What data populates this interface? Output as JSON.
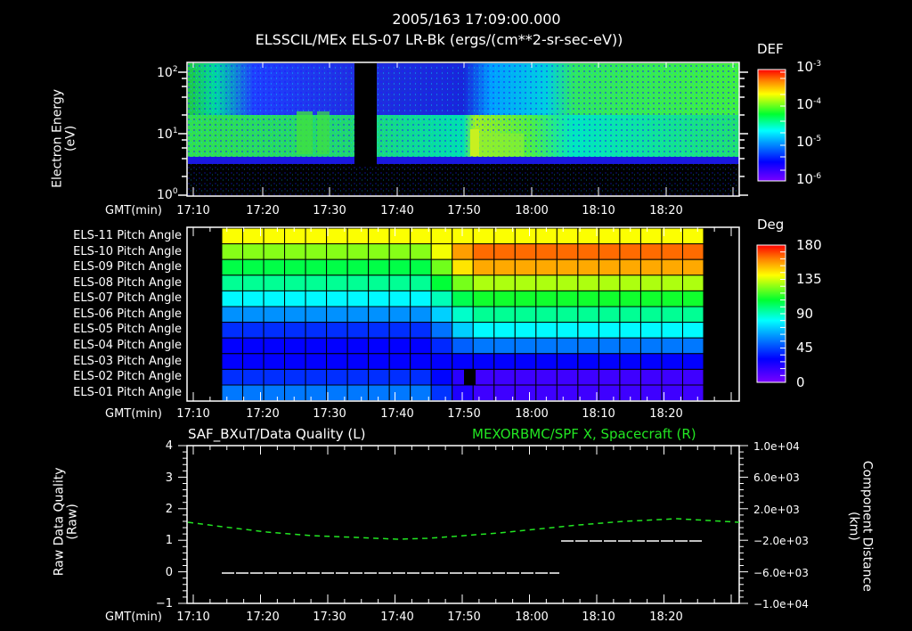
{
  "header": {
    "timestamp": "2005/163 17:09:00.000",
    "subtitle": "ELSSCIL/MEx ELS-07 LR-Bk  (ergs/(cm**2-sr-sec-eV))"
  },
  "panel1": {
    "ylabel_line1": "Electron Energy",
    "ylabel_line2": "(eV)",
    "yticks": [
      "10",
      "10",
      "10"
    ],
    "ytick_exps": [
      "2",
      "1",
      "0"
    ],
    "xlabel": "GMT(min)",
    "colorbar": {
      "title": "DEF",
      "labels": [
        "10",
        "10",
        "10",
        "10"
      ],
      "exps": [
        "-3",
        "-4",
        "-5",
        "-6"
      ]
    }
  },
  "panel2": {
    "rows": [
      "ELS-11 Pitch Angle",
      "ELS-10 Pitch Angle",
      "ELS-09 Pitch Angle",
      "ELS-08 Pitch Angle",
      "ELS-07 Pitch Angle",
      "ELS-06 Pitch Angle",
      "ELS-05 Pitch Angle",
      "ELS-04 Pitch Angle",
      "ELS-03 Pitch Angle",
      "ELS-02 Pitch Angle",
      "ELS-01 Pitch Angle"
    ],
    "xlabel": "GMT(min)",
    "colorbar": {
      "title": "Deg",
      "labels": [
        "180",
        "135",
        "90",
        "45",
        "0"
      ]
    }
  },
  "panel3": {
    "left_title": "SAF_BXuT/Data Quality (L)",
    "right_title": "MEXORBMC/SPF X, Spacecraft (R)",
    "ylabel_left_line1": "Raw Data Quality",
    "ylabel_left_line2": "(Raw)",
    "ylabel_right_line1": "Component Distance",
    "ylabel_right_line2": "(km)",
    "yticks_left": [
      "4",
      "3",
      "2",
      "1",
      "0",
      "−1"
    ],
    "yticks_right": [
      "1.0e+04",
      "6.0e+03",
      "2.0e+03",
      "−2.0e+03",
      "−6.0e+03",
      "−1.0e+04"
    ],
    "xlabel": "GMT(min)"
  },
  "xticks": [
    "17:10",
    "17:20",
    "17:30",
    "17:40",
    "17:50",
    "18:00",
    "18:10",
    "18:20"
  ],
  "colors": {
    "background": "#000000",
    "foreground": "#ffffff",
    "right_series": "#22e622"
  },
  "chart_data": [
    {
      "type": "heatmap",
      "title": "ELSSCIL/MEx ELS-07 LR-Bk (ergs/(cm**2-sr-sec-eV))",
      "xlabel": "GMT(min)",
      "ylabel": "Electron Energy (eV)",
      "yscale": "log",
      "ylim": [
        1,
        150
      ],
      "x_range": [
        "17:09",
        "18:30"
      ],
      "xticks": [
        "17:10",
        "17:20",
        "17:30",
        "17:40",
        "17:50",
        "18:00",
        "18:10",
        "18:20"
      ],
      "colorbar": {
        "label": "DEF",
        "scale": "log",
        "range": [
          1e-06,
          0.001
        ]
      },
      "notes": "Data gap ~17:34-17:37; intensity peak near 17:51 at ~5 eV; high fluxes >20 eV after 17:57"
    },
    {
      "type": "heatmap",
      "title": "Pitch angles ELS-01..ELS-11",
      "xlabel": "GMT(min)",
      "rows": [
        "ELS-11",
        "ELS-10",
        "ELS-09",
        "ELS-08",
        "ELS-07",
        "ELS-06",
        "ELS-05",
        "ELS-04",
        "ELS-03",
        "ELS-02",
        "ELS-01"
      ],
      "x_range": [
        "17:14",
        "18:25"
      ],
      "colorbar": {
        "label": "Deg",
        "range": [
          0,
          180
        ],
        "ticks": [
          0,
          45,
          90,
          135,
          180
        ]
      },
      "before_1748_deg": [
        140,
        125,
        105,
        95,
        80,
        60,
        40,
        30,
        30,
        40,
        55
      ],
      "after_1752_deg": [
        140,
        165,
        155,
        130,
        110,
        95,
        80,
        55,
        30,
        15,
        15
      ],
      "missing_cell": {
        "row": "ELS-02",
        "time": "17:51"
      }
    },
    {
      "type": "line",
      "x_range": [
        "17:09",
        "18:30"
      ],
      "xticks": [
        "17:10",
        "17:20",
        "17:30",
        "17:40",
        "17:50",
        "18:00",
        "18:10",
        "18:20"
      ],
      "series": [
        {
          "name": "SAF_BXuT/Data Quality (L)",
          "axis": "left",
          "ylim": [
            -1,
            4
          ],
          "points": [
            [
              "17:14",
              0
            ],
            [
              "18:04",
              0
            ],
            [
              "18:04",
              1
            ],
            [
              "18:25",
              1
            ]
          ]
        },
        {
          "name": "MEXORBMC/SPF X, Spacecraft (R)",
          "axis": "right",
          "ylim": [
            -10000,
            10000
          ],
          "color": "#22e622",
          "style": "dashed",
          "points": [
            [
              "17:09",
              0
            ],
            [
              "17:20",
              -1200
            ],
            [
              "17:30",
              -2000
            ],
            [
              "17:45",
              -2600
            ],
            [
              "17:55",
              -2300
            ],
            [
              "18:05",
              -1700
            ],
            [
              "18:15",
              -900
            ],
            [
              "18:30",
              0
            ]
          ]
        }
      ]
    }
  ]
}
